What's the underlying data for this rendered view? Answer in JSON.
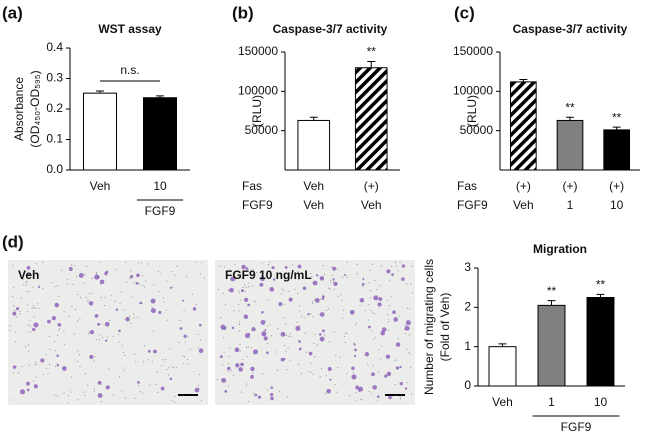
{
  "images": [
    {
      "label": "Veh"
    },
    {
      "label": "FGF9 10 ng/mL"
    }
  ],
  "chart_data": [
    {
      "type": "bar",
      "panel": "(a)",
      "title": "WST assay",
      "ylabel": [
        "Absorbance",
        "(OD₄₅₀-OD₅₉₅)"
      ],
      "categories": [
        "Veh",
        "10"
      ],
      "values": [
        0.252,
        0.237
      ],
      "errors": [
        0.007,
        0.006
      ],
      "colors": [
        "#ffffff",
        "#000000"
      ],
      "ylim": [
        0,
        0.4
      ],
      "yticks": [
        {
          "value": 0,
          "label": "0.0"
        },
        0.1,
        0.2,
        0.3,
        0.4
      ],
      "group": {
        "label": "FGF9",
        "span": [
          1,
          1
        ]
      },
      "bracket": {
        "label": "n.s.",
        "span": [
          0,
          1
        ]
      }
    },
    {
      "type": "bar",
      "panel": "(b)",
      "title": "Caspase-3/7 activity",
      "ylabel": [
        "(RLU)"
      ],
      "rows": [
        {
          "label": "Fas",
          "values": [
            "Veh",
            "(+)"
          ]
        },
        {
          "label": "FGF9",
          "values": [
            "Veh",
            "Veh"
          ]
        }
      ],
      "values": [
        63000,
        130000
      ],
      "errors": [
        4000,
        8000
      ],
      "colors": [
        "#ffffff",
        "hatch"
      ],
      "ylim": [
        0,
        150000
      ],
      "yticks": [
        50000,
        100000,
        150000
      ],
      "significance": [
        null,
        "**"
      ]
    },
    {
      "type": "bar",
      "panel": "(c)",
      "title": "Caspase-3/7 activity",
      "ylabel": [
        "(RLU)"
      ],
      "rows": [
        {
          "label": "Fas",
          "values": [
            "(+)",
            "(+)",
            "(+)"
          ]
        },
        {
          "label": "FGF9",
          "values": [
            "Veh",
            "1",
            "10"
          ]
        }
      ],
      "values": [
        112000,
        63000,
        51000
      ],
      "errors": [
        3000,
        4000,
        3500
      ],
      "colors": [
        "hatch",
        "#808080",
        "#000000"
      ],
      "ylim": [
        0,
        150000
      ],
      "yticks": [
        50000,
        100000,
        150000
      ],
      "significance": [
        null,
        "**",
        "**"
      ]
    },
    {
      "type": "bar",
      "panel": "(d)",
      "title": "Migration",
      "ylabel": [
        "Number of migrating cells",
        "(Fold of Veh)"
      ],
      "categories": [
        "Veh",
        "1",
        "10"
      ],
      "values": [
        1.0,
        2.05,
        2.25
      ],
      "errors": [
        0.07,
        0.12,
        0.08
      ],
      "colors": [
        "#ffffff",
        "#808080",
        "#000000"
      ],
      "ylim": [
        0,
        3
      ],
      "yticks": [
        0,
        1,
        2,
        3
      ],
      "group": {
        "label": "FGF9",
        "span": [
          1,
          2
        ]
      },
      "significance": [
        null,
        "**",
        "**"
      ]
    }
  ]
}
